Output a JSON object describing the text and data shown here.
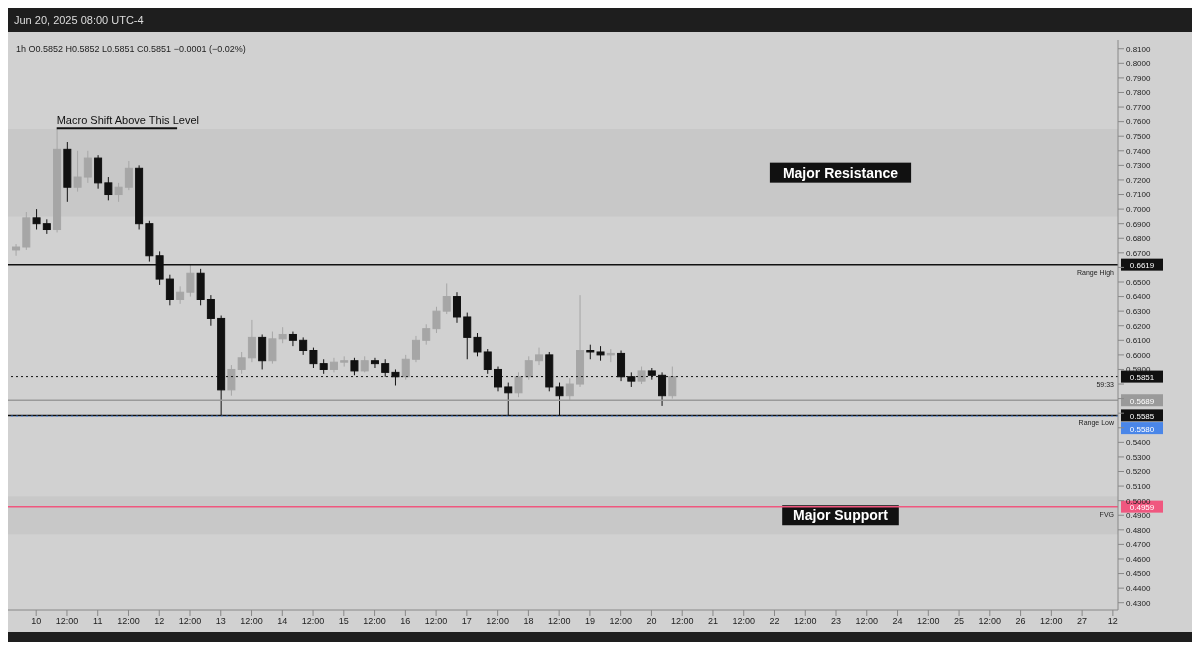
{
  "chart_data": {
    "type": "candlestick",
    "title": "Jun 20, 2025 08:00 UTC-4",
    "subtitle": "1h  O0.5852  H0.5852  L0.5851  C0.5851  −0.0001 (−0.02%)",
    "x": [
      "2025-06-09T16:00",
      "2025-06-09T20:00",
      "2025-06-10T00:00",
      "2025-06-10T04:00",
      "2025-06-10T08:00",
      "2025-06-10T12:00",
      "2025-06-10T16:00",
      "2025-06-10T20:00",
      "2025-06-11T00:00",
      "2025-06-11T04:00",
      "2025-06-11T08:00",
      "2025-06-11T12:00",
      "2025-06-11T16:00",
      "2025-06-11T20:00",
      "2025-06-12T00:00",
      "2025-06-12T04:00",
      "2025-06-12T08:00",
      "2025-06-12T12:00",
      "2025-06-12T16:00",
      "2025-06-12T20:00",
      "2025-06-13T00:00",
      "2025-06-13T04:00",
      "2025-06-13T08:00",
      "2025-06-13T12:00",
      "2025-06-13T16:00",
      "2025-06-13T20:00",
      "2025-06-14T00:00",
      "2025-06-14T04:00",
      "2025-06-14T08:00",
      "2025-06-14T12:00",
      "2025-06-14T16:00",
      "2025-06-14T20:00",
      "2025-06-15T00:00",
      "2025-06-15T04:00",
      "2025-06-15T08:00",
      "2025-06-15T12:00",
      "2025-06-15T16:00",
      "2025-06-15T20:00",
      "2025-06-16T00:00",
      "2025-06-16T04:00",
      "2025-06-16T08:00",
      "2025-06-16T12:00",
      "2025-06-16T16:00",
      "2025-06-16T20:00",
      "2025-06-17T00:00",
      "2025-06-17T04:00",
      "2025-06-17T08:00",
      "2025-06-17T12:00",
      "2025-06-17T16:00",
      "2025-06-17T20:00",
      "2025-06-18T00:00",
      "2025-06-18T04:00",
      "2025-06-18T08:00",
      "2025-06-18T12:00",
      "2025-06-18T16:00",
      "2025-06-18T20:00",
      "2025-06-19T00:00",
      "2025-06-19T04:00",
      "2025-06-19T08:00",
      "2025-06-19T12:00",
      "2025-06-19T16:00",
      "2025-06-19T20:00",
      "2025-06-20T00:00",
      "2025-06-20T04:00",
      "2025-06-20T08:00"
    ],
    "ohlc": [
      [
        0.672,
        0.676,
        0.668,
        0.674
      ],
      [
        0.674,
        0.698,
        0.672,
        0.694
      ],
      [
        0.694,
        0.7,
        0.686,
        0.69
      ],
      [
        0.69,
        0.693,
        0.683,
        0.686
      ],
      [
        0.686,
        0.755,
        0.684,
        0.741
      ],
      [
        0.741,
        0.746,
        0.705,
        0.715
      ],
      [
        0.715,
        0.74,
        0.712,
        0.722
      ],
      [
        0.722,
        0.74,
        0.718,
        0.735
      ],
      [
        0.735,
        0.737,
        0.714,
        0.718
      ],
      [
        0.718,
        0.722,
        0.706,
        0.71
      ],
      [
        0.71,
        0.718,
        0.705,
        0.715
      ],
      [
        0.715,
        0.733,
        0.713,
        0.728
      ],
      [
        0.728,
        0.73,
        0.686,
        0.69
      ],
      [
        0.69,
        0.692,
        0.664,
        0.668
      ],
      [
        0.668,
        0.671,
        0.648,
        0.652
      ],
      [
        0.652,
        0.655,
        0.634,
        0.638
      ],
      [
        0.638,
        0.647,
        0.635,
        0.643
      ],
      [
        0.643,
        0.662,
        0.64,
        0.656
      ],
      [
        0.656,
        0.659,
        0.634,
        0.638
      ],
      [
        0.638,
        0.641,
        0.62,
        0.625
      ],
      [
        0.625,
        0.627,
        0.5585,
        0.576
      ],
      [
        0.576,
        0.593,
        0.572,
        0.59
      ],
      [
        0.59,
        0.602,
        0.587,
        0.598
      ],
      [
        0.598,
        0.624,
        0.595,
        0.612
      ],
      [
        0.612,
        0.614,
        0.59,
        0.596
      ],
      [
        0.596,
        0.616,
        0.594,
        0.611
      ],
      [
        0.611,
        0.619,
        0.608,
        0.614
      ],
      [
        0.614,
        0.616,
        0.606,
        0.61
      ],
      [
        0.61,
        0.612,
        0.6,
        0.603
      ],
      [
        0.603,
        0.605,
        0.591,
        0.594
      ],
      [
        0.594,
        0.597,
        0.587,
        0.59
      ],
      [
        0.59,
        0.598,
        0.588,
        0.595
      ],
      [
        0.595,
        0.599,
        0.592,
        0.596
      ],
      [
        0.596,
        0.598,
        0.586,
        0.589
      ],
      [
        0.589,
        0.599,
        0.588,
        0.596
      ],
      [
        0.596,
        0.598,
        0.591,
        0.594
      ],
      [
        0.594,
        0.597,
        0.585,
        0.588
      ],
      [
        0.588,
        0.59,
        0.579,
        0.585
      ],
      [
        0.585,
        0.6,
        0.583,
        0.597
      ],
      [
        0.597,
        0.613,
        0.595,
        0.61
      ],
      [
        0.61,
        0.621,
        0.607,
        0.618
      ],
      [
        0.618,
        0.633,
        0.615,
        0.63
      ],
      [
        0.63,
        0.649,
        0.628,
        0.64
      ],
      [
        0.64,
        0.643,
        0.622,
        0.626
      ],
      [
        0.626,
        0.629,
        0.597,
        0.612
      ],
      [
        0.612,
        0.615,
        0.599,
        0.602
      ],
      [
        0.602,
        0.604,
        0.587,
        0.59
      ],
      [
        0.59,
        0.592,
        0.575,
        0.578
      ],
      [
        0.578,
        0.581,
        0.5585,
        0.574
      ],
      [
        0.574,
        0.588,
        0.571,
        0.585
      ],
      [
        0.585,
        0.599,
        0.583,
        0.596
      ],
      [
        0.596,
        0.605,
        0.593,
        0.6
      ],
      [
        0.6,
        0.602,
        0.575,
        0.578
      ],
      [
        0.578,
        0.581,
        0.5585,
        0.572
      ],
      [
        0.572,
        0.584,
        0.569,
        0.58
      ],
      [
        0.58,
        0.641,
        0.578,
        0.603
      ],
      [
        0.603,
        0.607,
        0.597,
        0.602
      ],
      [
        0.602,
        0.606,
        0.596,
        0.6
      ],
      [
        0.6,
        0.604,
        0.595,
        0.601
      ],
      [
        0.601,
        0.603,
        0.582,
        0.585
      ],
      [
        0.585,
        0.588,
        0.578,
        0.582
      ],
      [
        0.582,
        0.592,
        0.58,
        0.589
      ],
      [
        0.589,
        0.591,
        0.583,
        0.586
      ],
      [
        0.586,
        0.588,
        0.565,
        0.572
      ],
      [
        0.572,
        0.592,
        0.57,
        0.5851
      ]
    ],
    "colors": [
      "#a6a6a6",
      "#a6a6a6",
      "#111111",
      "#111111",
      "#a6a6a6",
      "#111111",
      "#a6a6a6",
      "#a6a6a6",
      "#111111",
      "#111111",
      "#a6a6a6",
      "#a6a6a6",
      "#111111",
      "#111111",
      "#111111",
      "#111111",
      "#a6a6a6",
      "#a6a6a6",
      "#111111",
      "#111111",
      "#111111",
      "#a6a6a6",
      "#a6a6a6",
      "#a6a6a6",
      "#111111",
      "#a6a6a6",
      "#a6a6a6",
      "#111111",
      "#111111",
      "#111111",
      "#111111",
      "#a6a6a6",
      "#a6a6a6",
      "#111111",
      "#a6a6a6",
      "#111111",
      "#111111",
      "#111111",
      "#a6a6a6",
      "#a6a6a6",
      "#a6a6a6",
      "#a6a6a6",
      "#a6a6a6",
      "#111111",
      "#111111",
      "#111111",
      "#111111",
      "#111111",
      "#111111",
      "#a6a6a6",
      "#a6a6a6",
      "#a6a6a6",
      "#111111",
      "#111111",
      "#a6a6a6",
      "#a6a6a6",
      "#111111",
      "#111111",
      "#a6a6a6",
      "#111111",
      "#111111",
      "#a6a6a6",
      "#111111",
      "#111111",
      "#a6a6a6"
    ],
    "xlim": [
      "2025-06-09T13:00",
      "2025-06-27T14:00"
    ],
    "xticks": [
      {
        "value": "2025-06-10",
        "label": "10"
      },
      {
        "value": "2025-06-10T12:00",
        "label": "12:00"
      },
      {
        "value": "2025-06-11",
        "label": "11"
      },
      {
        "value": "2025-06-11T12:00",
        "label": "12:00"
      },
      {
        "value": "2025-06-12",
        "label": "12"
      },
      {
        "value": "2025-06-12T12:00",
        "label": "12:00"
      },
      {
        "value": "2025-06-13",
        "label": "13"
      },
      {
        "value": "2025-06-13T12:00",
        "label": "12:00"
      },
      {
        "value": "2025-06-14",
        "label": "14"
      },
      {
        "value": "2025-06-14T12:00",
        "label": "12:00"
      },
      {
        "value": "2025-06-15",
        "label": "15"
      },
      {
        "value": "2025-06-15T12:00",
        "label": "12:00"
      },
      {
        "value": "2025-06-16",
        "label": "16"
      },
      {
        "value": "2025-06-16T12:00",
        "label": "12:00"
      },
      {
        "value": "2025-06-17",
        "label": "17"
      },
      {
        "value": "2025-06-17T12:00",
        "label": "12:00"
      },
      {
        "value": "2025-06-18",
        "label": "18"
      },
      {
        "value": "2025-06-18T12:00",
        "label": "12:00"
      },
      {
        "value": "2025-06-19",
        "label": "19"
      },
      {
        "value": "2025-06-19T12:00",
        "label": "12:00"
      },
      {
        "value": "2025-06-20",
        "label": "20"
      },
      {
        "value": "2025-06-20T12:00",
        "label": "12:00"
      },
      {
        "value": "2025-06-21",
        "label": "21"
      },
      {
        "value": "2025-06-21T12:00",
        "label": "12:00"
      },
      {
        "value": "2025-06-22",
        "label": "22"
      },
      {
        "value": "2025-06-22T12:00",
        "label": "12:00"
      },
      {
        "value": "2025-06-23",
        "label": "23"
      },
      {
        "value": "2025-06-23T12:00",
        "label": "12:00"
      },
      {
        "value": "2025-06-24",
        "label": "24"
      },
      {
        "value": "2025-06-24T12:00",
        "label": "12:00"
      },
      {
        "value": "2025-06-25",
        "label": "25"
      },
      {
        "value": "2025-06-25T12:00",
        "label": "12:00"
      },
      {
        "value": "2025-06-26",
        "label": "26"
      },
      {
        "value": "2025-06-26T12:00",
        "label": "12:00"
      },
      {
        "value": "2025-06-27",
        "label": "27"
      },
      {
        "value": "2025-06-27T12:00",
        "label": "12"
      }
    ],
    "ylim": [
      0.425,
      0.816
    ],
    "yticks": [
      {
        "value": 0.43,
        "label": "0.4300"
      },
      {
        "value": 0.44,
        "label": "0.4400"
      },
      {
        "value": 0.45,
        "label": "0.4500"
      },
      {
        "value": 0.46,
        "label": "0.4600"
      },
      {
        "value": 0.47,
        "label": "0.4700"
      },
      {
        "value": 0.48,
        "label": "0.4800"
      },
      {
        "value": 0.49,
        "label": "0.4900"
      },
      {
        "value": 0.5,
        "label": "0.5000"
      },
      {
        "value": 0.51,
        "label": "0.5100"
      },
      {
        "value": 0.52,
        "label": "0.5200"
      },
      {
        "value": 0.53,
        "label": "0.5300"
      },
      {
        "value": 0.54,
        "label": "0.5400"
      },
      {
        "value": 0.55,
        "label": null
      },
      {
        "value": 0.56,
        "label": null
      },
      {
        "value": 0.57,
        "label": null
      },
      {
        "value": 0.58,
        "label": null
      },
      {
        "value": 0.59,
        "label": "0.5900"
      },
      {
        "value": 0.6,
        "label": "0.6000"
      },
      {
        "value": 0.61,
        "label": "0.6100"
      },
      {
        "value": 0.62,
        "label": "0.6200"
      },
      {
        "value": 0.63,
        "label": "0.6300"
      },
      {
        "value": 0.64,
        "label": "0.6400"
      },
      {
        "value": 0.65,
        "label": "0.6500"
      },
      {
        "value": 0.66,
        "label": null
      },
      {
        "value": 0.67,
        "label": "0.6700"
      },
      {
        "value": 0.68,
        "label": "0.6800"
      },
      {
        "value": 0.69,
        "label": "0.6900"
      },
      {
        "value": 0.7,
        "label": "0.7000"
      },
      {
        "value": 0.71,
        "label": "0.7100"
      },
      {
        "value": 0.72,
        "label": "0.7200"
      },
      {
        "value": 0.73,
        "label": "0.7300"
      },
      {
        "value": 0.74,
        "label": "0.7400"
      },
      {
        "value": 0.75,
        "label": "0.7500"
      },
      {
        "value": 0.76,
        "label": "0.7600"
      },
      {
        "value": 0.77,
        "label": "0.7700"
      },
      {
        "value": 0.78,
        "label": "0.7800"
      },
      {
        "value": 0.79,
        "label": "0.7900"
      },
      {
        "value": 0.8,
        "label": "0.8000"
      },
      {
        "value": 0.81,
        "label": "0.8100"
      }
    ],
    "ref_lines": [
      {
        "axis": "y",
        "value": 0.6619,
        "label": "0.6619",
        "color": "#111111"
      },
      {
        "axis": "y",
        "value": 0.5585,
        "label": "0.5585",
        "color": "#111111"
      },
      {
        "axis": "y",
        "value": 0.5689,
        "label": "0.5689",
        "color": "#9a9a9a"
      },
      {
        "axis": "y",
        "value": 0.5851,
        "label": "0.5851",
        "color": "#111111",
        "line_style": "dotted"
      },
      {
        "axis": "y",
        "value": 0.558,
        "label": "0.5580",
        "color": "#4a86e8",
        "line_style": "dotted"
      },
      {
        "axis": "y",
        "value": 0.4959,
        "label": "0.4959",
        "color": "#f0577f"
      }
    ],
    "bands": [
      {
        "axis": "y",
        "from": 0.695,
        "to": 0.755,
        "label": "Major Resistance",
        "color": "#c8c8c8"
      },
      {
        "axis": "y",
        "from": 0.477,
        "to": 0.503,
        "label": "Major Support",
        "color": "#c8c8c8"
      }
    ],
    "annotations": [
      {
        "text": "Macro Shift Above This Level",
        "x": "2025-06-10T08:00",
        "y": 0.7555
      },
      {
        "text": "Range High",
        "y": 0.6619
      },
      {
        "text": "Range Low",
        "y": 0.5585
      },
      {
        "text": "59:33",
        "y": 0.5851
      },
      {
        "text": "FVG",
        "y": 0.4959
      }
    ]
  }
}
